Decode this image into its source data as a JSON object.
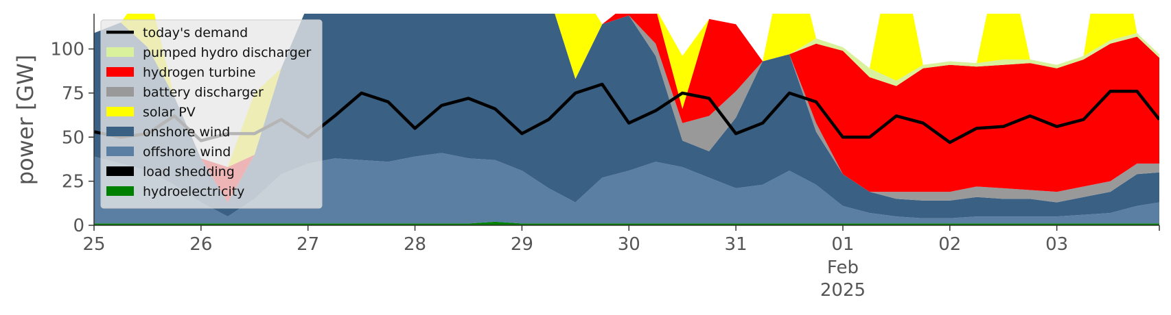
{
  "chart_data": {
    "type": "area",
    "ylabel": "power [GW]",
    "ylim": [
      0,
      120
    ],
    "xlim": [
      "2025-01-25T00:00",
      "2025-02-03T23:00"
    ],
    "y_ticks": [
      0,
      25,
      50,
      75,
      100
    ],
    "x_ticks": [
      {
        "x": "2025-01-25",
        "label": "25"
      },
      {
        "x": "2025-01-26",
        "label": "26"
      },
      {
        "x": "2025-01-27",
        "label": "27"
      },
      {
        "x": "2025-01-28",
        "label": "28"
      },
      {
        "x": "2025-01-29",
        "label": "29"
      },
      {
        "x": "2025-01-30",
        "label": "30"
      },
      {
        "x": "2025-01-31",
        "label": "31"
      },
      {
        "x": "2025-02-01",
        "label": "01"
      },
      {
        "x": "2025-02-02",
        "label": "02"
      },
      {
        "x": "2025-02-03",
        "label": "03"
      }
    ],
    "x_tick_sublabels": [
      "Feb",
      "2025"
    ],
    "grid": false,
    "legend_position": "top-left",
    "legend": [
      "today's demand",
      "pumped hydro discharger",
      "hydrogen turbine",
      "battery discharger",
      "solar PV",
      "onshore wind",
      "offshore wind",
      "load shedding",
      "hydroelectricity"
    ],
    "stack_order": [
      "hydroelectricity",
      "load shedding",
      "offshore wind",
      "onshore wind",
      "battery discharger",
      "hydrogen turbine",
      "pumped hydro discharger",
      "solar PV"
    ],
    "x": [
      "2025-01-25T00:00",
      "2025-01-25T06:00",
      "2025-01-25T12:00",
      "2025-01-25T18:00",
      "2025-01-26T00:00",
      "2025-01-26T06:00",
      "2025-01-26T12:00",
      "2025-01-26T18:00",
      "2025-01-27T00:00",
      "2025-01-27T06:00",
      "2025-01-27T12:00",
      "2025-01-27T18:00",
      "2025-01-28T00:00",
      "2025-01-28T06:00",
      "2025-01-28T12:00",
      "2025-01-28T18:00",
      "2025-01-29T00:00",
      "2025-01-29T06:00",
      "2025-01-29T12:00",
      "2025-01-29T18:00",
      "2025-01-30T00:00",
      "2025-01-30T06:00",
      "2025-01-30T12:00",
      "2025-01-30T18:00",
      "2025-01-31T00:00",
      "2025-01-31T06:00",
      "2025-01-31T12:00",
      "2025-01-31T18:00",
      "2025-02-01T00:00",
      "2025-02-01T06:00",
      "2025-02-01T12:00",
      "2025-02-01T18:00",
      "2025-02-02T00:00",
      "2025-02-02T06:00",
      "2025-02-02T12:00",
      "2025-02-02T18:00",
      "2025-02-03T00:00",
      "2025-02-03T06:00",
      "2025-02-03T12:00",
      "2025-02-03T18:00",
      "2025-02-03T23:00"
    ],
    "series": [
      {
        "name": "hydroelectricity",
        "color": "#008000",
        "values": [
          1,
          1,
          1,
          1,
          1,
          1,
          1,
          1,
          1,
          1,
          1,
          1,
          1,
          1,
          1,
          2,
          1,
          1,
          1,
          1,
          1,
          1,
          1,
          1,
          1,
          1,
          1,
          1,
          1,
          1,
          1,
          1,
          1,
          1,
          1,
          1,
          1,
          1,
          1,
          1,
          1
        ]
      },
      {
        "name": "load shedding",
        "color": "#000000",
        "values": [
          0,
          0,
          0,
          0,
          0,
          0,
          0,
          0,
          0,
          0,
          0,
          0,
          0,
          0,
          0,
          0,
          0,
          0,
          0,
          0,
          0,
          0,
          0,
          0,
          0,
          0,
          0,
          0,
          0,
          0,
          0,
          0,
          0,
          0,
          0,
          0,
          0,
          0,
          0,
          0,
          0
        ]
      },
      {
        "name": "offshore wind",
        "color": "#5b7fa3",
        "values": [
          38,
          34,
          30,
          22,
          12,
          4,
          14,
          28,
          34,
          37,
          36,
          35,
          38,
          40,
          37,
          35,
          30,
          20,
          12,
          26,
          30,
          35,
          32,
          26,
          20,
          22,
          30,
          22,
          10,
          6,
          4,
          3,
          3,
          4,
          4,
          4,
          4,
          5,
          6,
          10,
          12
        ]
      },
      {
        "name": "onshore wind",
        "color": "#3a6084",
        "values": [
          70,
          80,
          70,
          50,
          25,
          8,
          25,
          60,
          90,
          120,
          120,
          120,
          120,
          120,
          120,
          120,
          120,
          110,
          70,
          87,
          88,
          60,
          15,
          15,
          40,
          70,
          66,
          30,
          18,
          12,
          10,
          10,
          10,
          11,
          10,
          10,
          8,
          10,
          12,
          18,
          17
        ]
      },
      {
        "name": "battery discharger",
        "color": "#999999",
        "values": [
          0,
          0,
          0,
          0,
          0,
          0,
          0,
          0,
          0,
          0,
          0,
          0,
          0,
          0,
          0,
          0,
          0,
          0,
          0,
          0,
          0,
          7,
          10,
          20,
          15,
          0,
          0,
          5,
          0,
          0,
          4,
          5,
          5,
          6,
          6,
          5,
          6,
          6,
          6,
          6,
          5
        ]
      },
      {
        "name": "hydrogen turbine",
        "color": "#ff0000",
        "values": [
          0,
          0,
          0,
          0,
          0,
          20,
          0,
          0,
          0,
          0,
          0,
          0,
          0,
          0,
          0,
          0,
          0,
          0,
          0,
          0,
          7,
          20,
          8,
          55,
          38,
          0,
          0,
          45,
          70,
          65,
          60,
          70,
          72,
          68,
          70,
          72,
          70,
          72,
          78,
          72,
          60
        ]
      },
      {
        "name": "pumped hydro discharger",
        "color": "#d9f09c",
        "values": [
          0,
          0,
          0,
          0,
          0,
          0,
          0,
          0,
          0,
          0,
          0,
          0,
          0,
          0,
          0,
          0,
          0,
          0,
          0,
          0,
          0,
          0,
          0,
          0,
          0,
          0,
          0,
          3,
          2,
          5,
          3,
          2,
          2,
          2,
          3,
          2,
          2,
          2,
          2,
          2,
          2
        ]
      },
      {
        "name": "solar PV",
        "color": "#ffff00",
        "values": [
          0,
          0,
          35,
          0,
          0,
          0,
          35,
          0,
          0,
          0,
          0,
          0,
          0,
          0,
          60,
          0,
          0,
          0,
          55,
          0,
          0,
          0,
          30,
          0,
          0,
          0,
          70,
          0,
          0,
          0,
          85,
          0,
          0,
          0,
          70,
          0,
          0,
          0,
          85,
          0,
          0
        ]
      }
    ],
    "demand": {
      "name": "today's demand",
      "color": "#000000",
      "values": [
        53,
        50,
        52,
        62,
        48,
        52,
        52,
        60,
        50,
        62,
        75,
        70,
        55,
        68,
        72,
        66,
        52,
        60,
        75,
        80,
        58,
        65,
        75,
        72,
        52,
        58,
        75,
        70,
        50,
        50,
        62,
        58,
        47,
        55,
        56,
        62,
        56,
        60,
        76,
        76,
        60
      ]
    }
  }
}
